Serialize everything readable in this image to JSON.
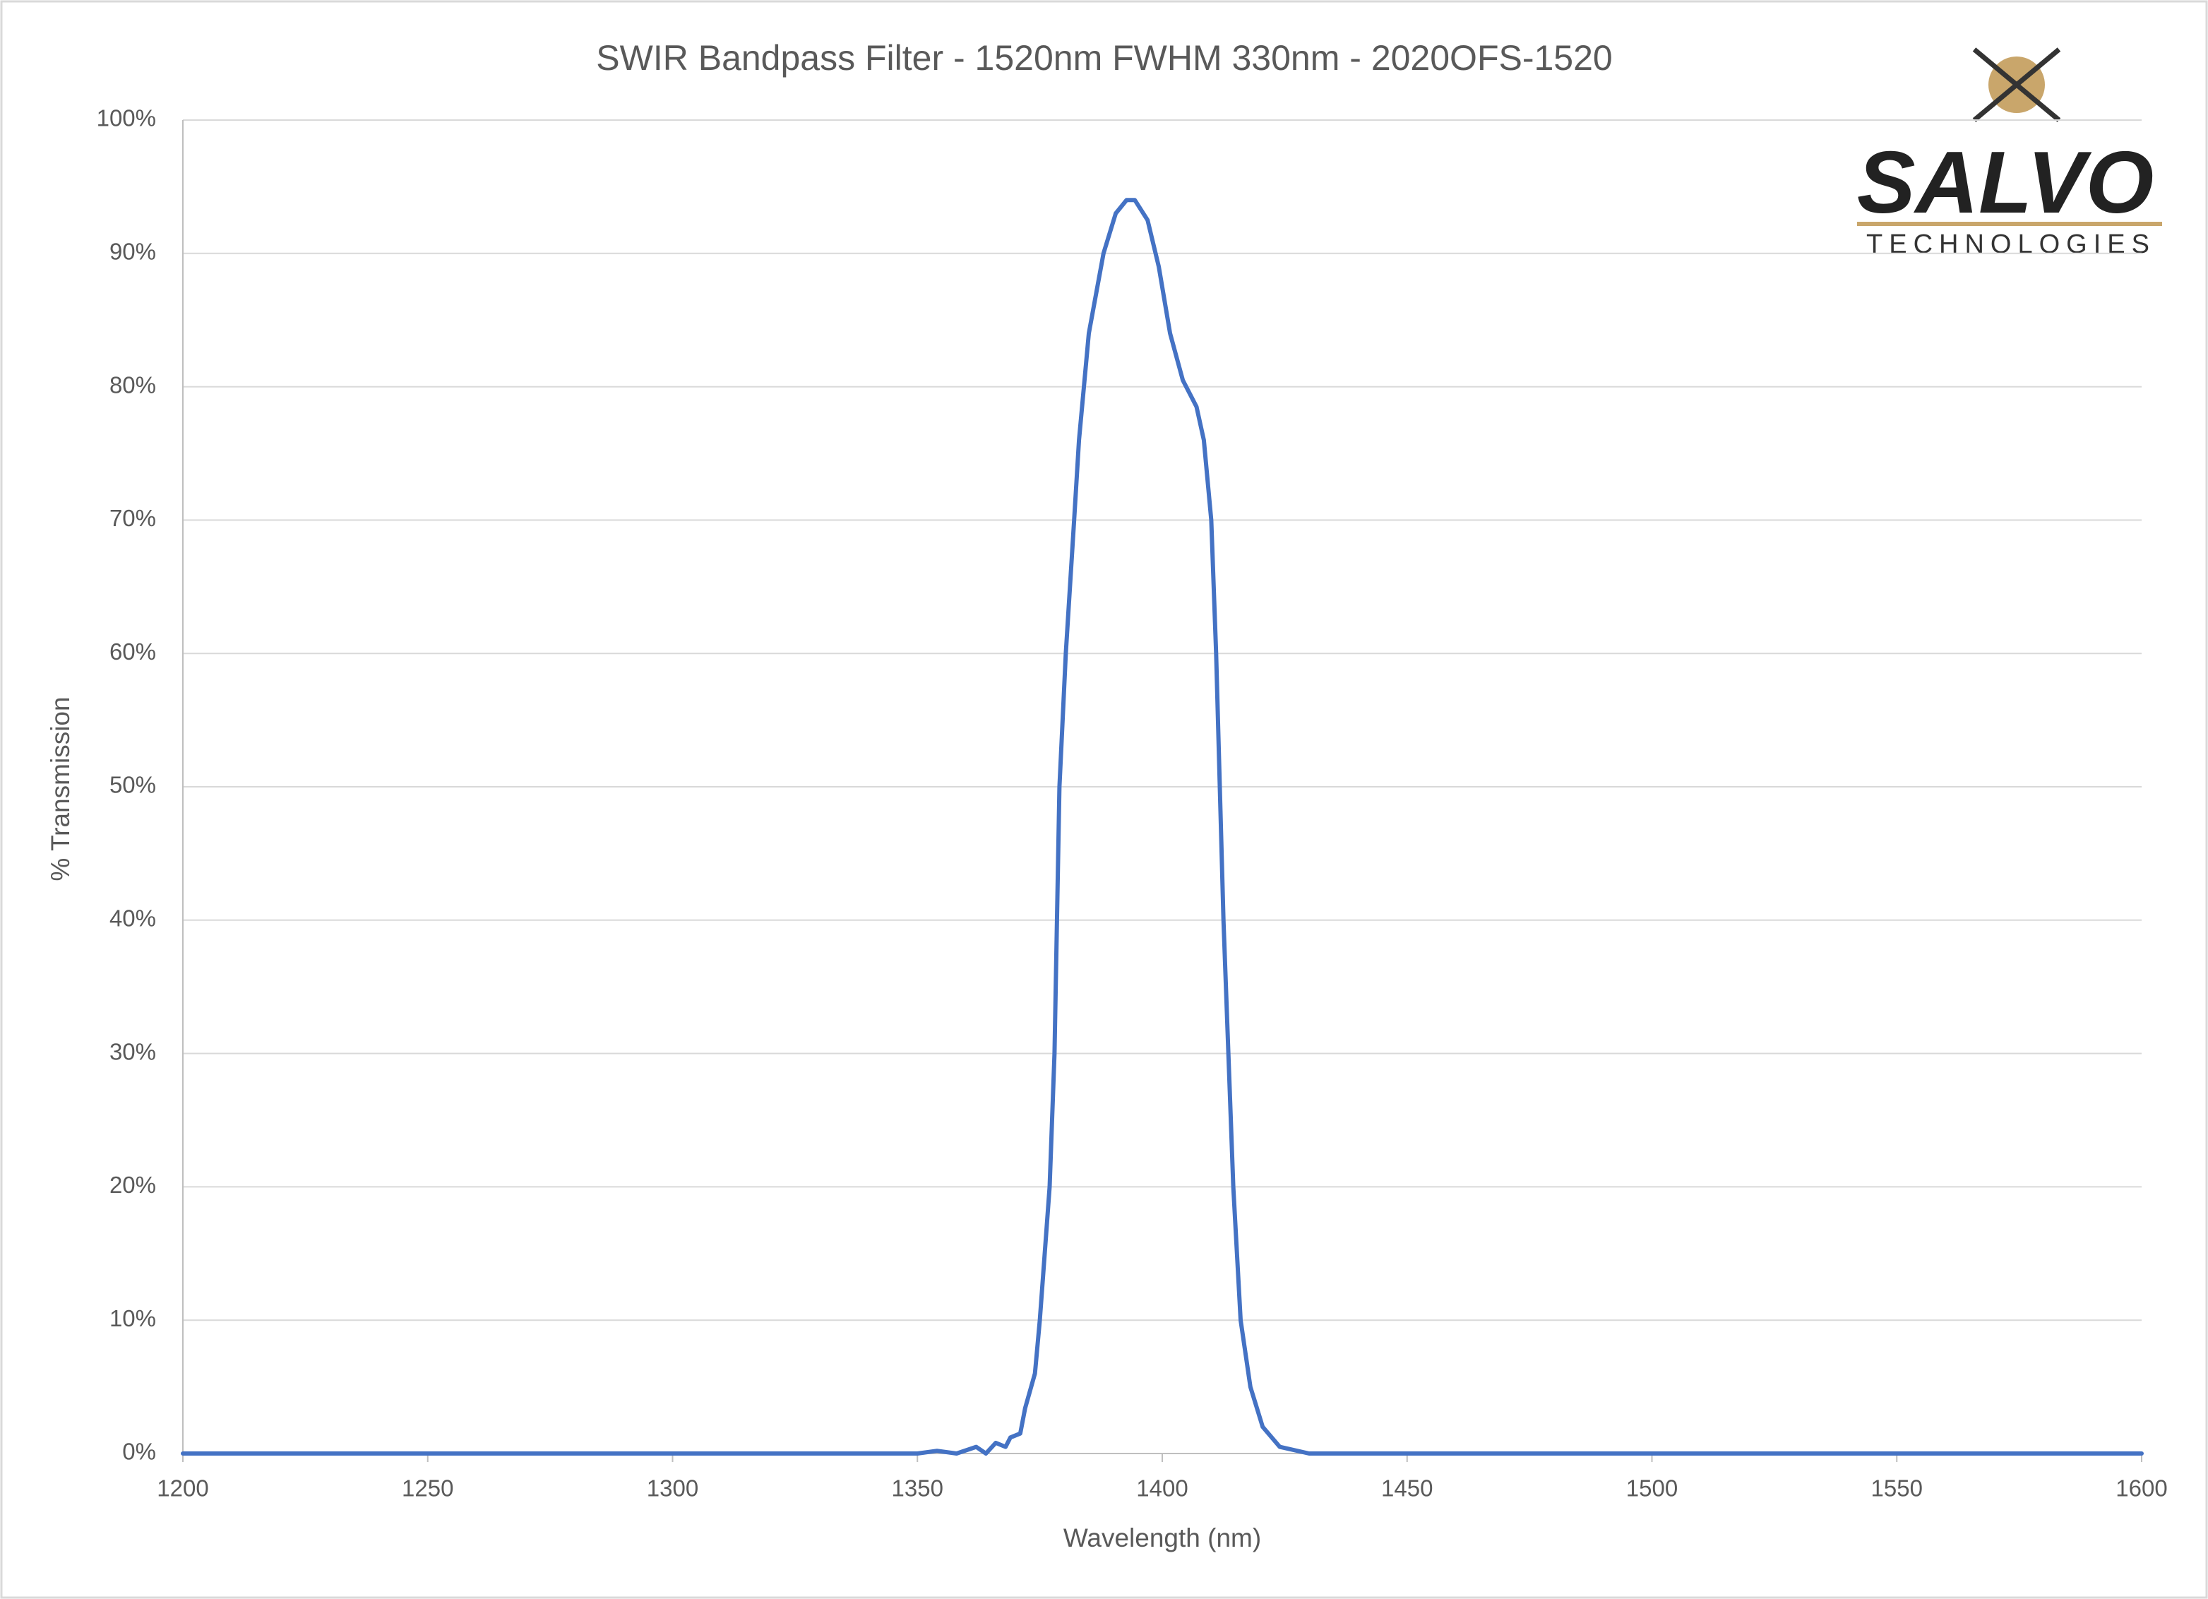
{
  "chart_data": {
    "type": "line",
    "title": "SWIR Bandpass Filter - 1520nm FWHM 330nm - 2020OFS-1520",
    "x_label": "Wavelength (nm)",
    "y_label": "% Transmission",
    "color": "#4472c4",
    "grid": true,
    "x": [
      1200,
      1250,
      1300,
      1340,
      1350,
      1354,
      1358,
      1362,
      1364,
      1366,
      1368,
      1369,
      1371,
      1372,
      1374,
      1375,
      1377,
      1378,
      1379,
      1380.3,
      1382,
      1383,
      1385,
      1388,
      1390.5,
      1392.7,
      1394.4,
      1397,
      1399.3,
      1401.6,
      1404.2,
      1407,
      1408.5,
      1410,
      1411,
      1412.5,
      1414.5,
      1416,
      1418,
      1420.5,
      1424,
      1430,
      1450,
      1500,
      1550,
      1600
    ],
    "values": [
      0,
      0,
      0,
      0,
      0,
      0.2,
      0,
      0.5,
      0,
      0.8,
      0.5,
      1.2,
      1.5,
      3.4,
      6,
      10,
      20,
      30,
      50,
      60,
      70,
      76,
      84,
      90,
      93,
      94,
      94,
      92.5,
      89,
      84,
      80.5,
      78.5,
      76,
      70,
      60,
      40,
      20,
      10,
      5,
      2,
      0.5,
      0,
      0,
      0,
      0,
      0
    ],
    "xlim": [
      1200,
      1600
    ],
    "xticks": [
      1200,
      1250,
      1300,
      1350,
      1400,
      1450,
      1500,
      1550,
      1600
    ],
    "ylim": [
      0,
      100
    ],
    "yticks": [
      {
        "value": 0,
        "label": "0%"
      },
      {
        "value": 10,
        "label": "10%"
      },
      {
        "value": 20,
        "label": "20%"
      },
      {
        "value": 30,
        "label": "30%"
      },
      {
        "value": 40,
        "label": "40%"
      },
      {
        "value": 50,
        "label": "50%"
      },
      {
        "value": 60,
        "label": "60%"
      },
      {
        "value": 70,
        "label": "70%"
      },
      {
        "value": 80,
        "label": "80%"
      },
      {
        "value": 90,
        "label": "90%"
      },
      {
        "value": 100,
        "label": "100%"
      }
    ]
  },
  "logo": {
    "name": "SALVO",
    "tagline": "TECHNOLOGIES"
  }
}
